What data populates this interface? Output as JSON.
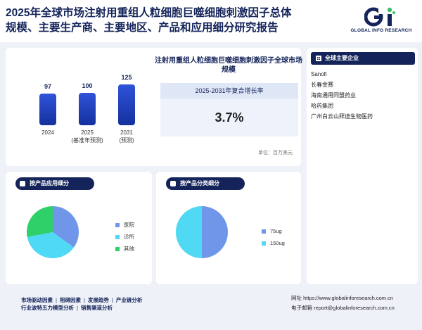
{
  "header": {
    "title": "2025年全球市场注射用重组人粒细胞巨噬细胞刺激因子总体规模、主要生产商、主要地区、产品和应用细分研究报告",
    "logo_text": "GLOBAL INFO RESEARCH",
    "brand_color": "#14245a",
    "logo_accent_color": "#3bbf6b"
  },
  "market_panel": {
    "title": "注射用重组人粒细胞巨噬细胞刺激因子全球市场规模",
    "cagr_label": "2025-2031年复合增长率",
    "cagr_value": "3.7%",
    "unit": "单位：百万美元"
  },
  "chart_data": [
    {
      "type": "bar",
      "categories": [
        "2024",
        "2025",
        "2031"
      ],
      "category_notes": [
        "",
        "(基准年预测)",
        "(预测)"
      ],
      "values": [
        97,
        100,
        125
      ],
      "value_labels": [
        "97",
        "100",
        "125"
      ],
      "bar_color": "#1e3bb8"
    },
    {
      "type": "pie",
      "labels": [
        "医院",
        "诊所",
        "其他"
      ],
      "values": [
        35,
        37,
        28
      ],
      "colors": [
        "#6f96e8",
        "#4fd9f4",
        "#2fcf6a"
      ]
    },
    {
      "type": "pie",
      "labels": [
        "75ug",
        "150ug"
      ],
      "values": [
        50,
        50
      ],
      "colors": [
        "#6f96e8",
        "#4fd9f4"
      ]
    }
  ],
  "sidebar": {
    "title": "全球主要企业",
    "companies": [
      "Sanofi",
      "长春金赛",
      "海南通用同盟药业",
      "哈药集团",
      "广州白云山拜迪生物医药"
    ]
  },
  "application_panel": {
    "title": "按产品应用细分"
  },
  "type_panel": {
    "title": "按产品分类细分"
  },
  "footer": {
    "links_row1": [
      "市场驱动因素",
      "阻碍因素",
      "发展趋势",
      "产业链分析"
    ],
    "links_row2": [
      "行业波特五力模型分析",
      "销售渠道分析"
    ],
    "website": "网址 https://www.globalinforesearch.com.cn",
    "email": "电子邮箱 report@globalinforesearch.com.cn"
  }
}
